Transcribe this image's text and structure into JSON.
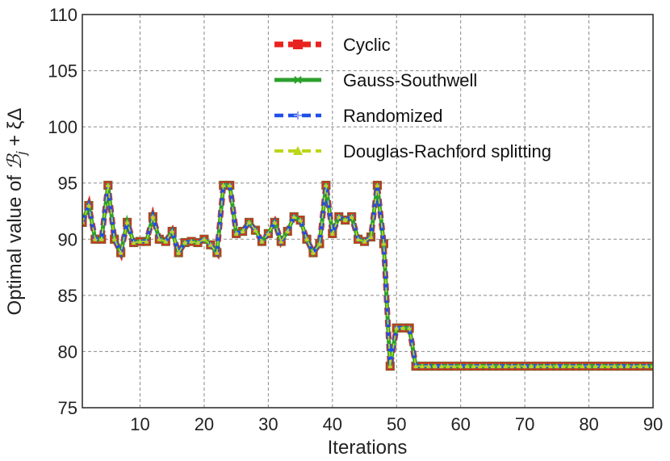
{
  "chart_data": {
    "type": "line",
    "title": "",
    "xlabel": "Iterations",
    "ylabel": "Optimal value of ℬ",
    "ylabel_parts": {
      "prefix": "Optimal value of ",
      "symbol": "ℬ",
      "subscript": "j",
      "suffix": " + ξΔ"
    },
    "xlim": [
      1,
      90
    ],
    "ylim": [
      75,
      110
    ],
    "xticks": [
      10,
      20,
      30,
      40,
      50,
      60,
      70,
      80,
      90
    ],
    "yticks": [
      75,
      80,
      85,
      90,
      95,
      100,
      105,
      110
    ],
    "grid": true,
    "legend_position": "top-right",
    "x": [
      1,
      2,
      3,
      4,
      5,
      6,
      7,
      8,
      9,
      10,
      11,
      12,
      13,
      14,
      15,
      16,
      17,
      18,
      19,
      20,
      21,
      22,
      23,
      24,
      25,
      26,
      27,
      28,
      29,
      30,
      31,
      32,
      33,
      34,
      35,
      36,
      37,
      38,
      39,
      40,
      41,
      42,
      43,
      44,
      45,
      46,
      47,
      48,
      49,
      50,
      51,
      52,
      53,
      54,
      55,
      56,
      57,
      58,
      59,
      60,
      61,
      62,
      63,
      64,
      65,
      66,
      67,
      68,
      69,
      70,
      71,
      72,
      73,
      74,
      75,
      76,
      77,
      78,
      79,
      80,
      81,
      82,
      83,
      84,
      85,
      86,
      87,
      88,
      89,
      90
    ],
    "series": [
      {
        "name": "Cyclic",
        "color": "#e8231f",
        "linestyle": "dashed",
        "marker": "square",
        "values": [
          91.5,
          93.0,
          90.0,
          90.0,
          94.8,
          90.0,
          88.8,
          91.5,
          89.7,
          89.8,
          89.8,
          92.0,
          90.0,
          89.8,
          90.7,
          88.8,
          89.7,
          89.8,
          89.7,
          90.0,
          89.5,
          88.8,
          94.8,
          94.8,
          90.5,
          90.7,
          91.5,
          90.8,
          89.8,
          90.5,
          91.5,
          89.8,
          90.7,
          92.0,
          91.7,
          90.0,
          88.8,
          89.6,
          94.8,
          90.5,
          92.0,
          91.7,
          92.0,
          90.0,
          89.8,
          90.2,
          94.8,
          89.6,
          78.7,
          82.1,
          82.1,
          82.1,
          78.7,
          78.7,
          78.7,
          78.7,
          78.7,
          78.7,
          78.7,
          78.7,
          78.7,
          78.7,
          78.7,
          78.7,
          78.7,
          78.7,
          78.7,
          78.7,
          78.7,
          78.7,
          78.7,
          78.7,
          78.7,
          78.7,
          78.7,
          78.7,
          78.7,
          78.7,
          78.7,
          78.7,
          78.7,
          78.7,
          78.7,
          78.7,
          78.7,
          78.7,
          78.7,
          78.7,
          78.7,
          78.7
        ]
      },
      {
        "name": "Gauss-Southwell",
        "color": "#2ca02c",
        "linestyle": "solid",
        "marker": "x",
        "values": [
          91.5,
          93.0,
          90.0,
          90.0,
          94.8,
          90.0,
          88.8,
          91.5,
          89.7,
          89.8,
          89.8,
          92.0,
          90.0,
          89.8,
          90.7,
          88.8,
          89.7,
          89.8,
          89.7,
          90.0,
          89.5,
          88.8,
          94.8,
          94.8,
          90.5,
          90.7,
          91.5,
          90.8,
          89.8,
          90.5,
          91.5,
          89.8,
          90.7,
          92.0,
          91.7,
          90.0,
          88.8,
          89.6,
          94.8,
          90.5,
          92.0,
          91.7,
          92.0,
          90.0,
          89.8,
          90.2,
          94.8,
          89.6,
          78.7,
          82.1,
          82.1,
          82.1,
          78.7,
          78.7,
          78.7,
          78.7,
          78.7,
          78.7,
          78.7,
          78.7,
          78.7,
          78.7,
          78.7,
          78.7,
          78.7,
          78.7,
          78.7,
          78.7,
          78.7,
          78.7,
          78.7,
          78.7,
          78.7,
          78.7,
          78.7,
          78.7,
          78.7,
          78.7,
          78.7,
          78.7,
          78.7,
          78.7,
          78.7,
          78.7,
          78.7,
          78.7,
          78.7,
          78.7,
          78.7,
          78.7
        ]
      },
      {
        "name": "Randomized",
        "color": "#1f4fe8",
        "linestyle": "dashed",
        "marker": "plus",
        "values": [
          91.5,
          93.0,
          90.0,
          90.0,
          94.8,
          90.0,
          88.8,
          91.5,
          89.7,
          89.8,
          89.8,
          92.0,
          90.0,
          89.8,
          90.7,
          88.8,
          89.7,
          89.8,
          89.7,
          90.0,
          89.5,
          88.8,
          94.8,
          94.8,
          90.5,
          90.7,
          91.5,
          90.8,
          89.8,
          90.5,
          91.5,
          89.8,
          90.7,
          92.0,
          91.7,
          90.0,
          88.8,
          89.6,
          94.8,
          90.5,
          92.0,
          91.7,
          92.0,
          90.0,
          89.8,
          90.2,
          94.8,
          89.6,
          78.7,
          82.1,
          82.1,
          82.1,
          78.7,
          78.7,
          78.7,
          78.7,
          78.7,
          78.7,
          78.7,
          78.7,
          78.7,
          78.7,
          78.7,
          78.7,
          78.7,
          78.7,
          78.7,
          78.7,
          78.7,
          78.7,
          78.7,
          78.7,
          78.7,
          78.7,
          78.7,
          78.7,
          78.7,
          78.7,
          78.7,
          78.7,
          78.7,
          78.7,
          78.7,
          78.7,
          78.7,
          78.7,
          78.7,
          78.7,
          78.7,
          78.7
        ]
      },
      {
        "name": "Douglas-Rachford splitting",
        "color": "#bcd61a",
        "linestyle": "dashed",
        "marker": "triangle",
        "values": [
          91.5,
          93.0,
          90.0,
          90.0,
          94.8,
          90.0,
          88.8,
          91.5,
          89.7,
          89.8,
          89.8,
          92.0,
          90.0,
          89.8,
          90.7,
          88.8,
          89.7,
          89.8,
          89.7,
          90.0,
          89.5,
          88.8,
          94.8,
          94.8,
          90.5,
          90.7,
          91.5,
          90.8,
          89.8,
          90.5,
          91.5,
          89.8,
          90.7,
          92.0,
          91.7,
          90.0,
          88.8,
          89.6,
          94.8,
          90.5,
          92.0,
          91.7,
          92.0,
          90.0,
          89.8,
          90.2,
          94.8,
          89.6,
          78.7,
          82.1,
          82.1,
          82.1,
          78.7,
          78.7,
          78.7,
          78.7,
          78.7,
          78.7,
          78.7,
          78.7,
          78.7,
          78.7,
          78.7,
          78.7,
          78.7,
          78.7,
          78.7,
          78.7,
          78.7,
          78.7,
          78.7,
          78.7,
          78.7,
          78.7,
          78.7,
          78.7,
          78.7,
          78.7,
          78.7,
          78.7,
          78.7,
          78.7,
          78.7,
          78.7,
          78.7,
          78.7,
          78.7,
          78.7,
          78.7,
          78.7
        ]
      }
    ]
  }
}
